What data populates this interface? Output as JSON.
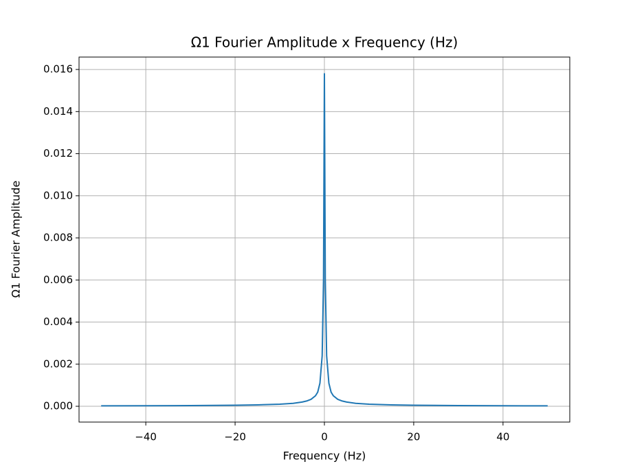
{
  "chart_data": {
    "type": "line",
    "title": "Ω1 Fourier Amplitude x Frequency (Hz)",
    "x_label": "Frequency (Hz)",
    "y_label": "Ω1 Fourier Amplitude",
    "x": [
      -50,
      -40,
      -30,
      -20,
      -15,
      -10,
      -7,
      -5,
      -4,
      -3,
      -2,
      -1.5,
      -1,
      -0.5,
      -0.2,
      0,
      0.2,
      0.5,
      1,
      1.5,
      2,
      3,
      4,
      5,
      7,
      10,
      15,
      20,
      30,
      40,
      50
    ],
    "series": [
      {
        "name": "Ω1",
        "color": "#1f77b4",
        "values": [
          2e-05,
          2.5e-05,
          3.3e-05,
          5e-05,
          6.7e-05,
          0.0001,
          0.00014,
          0.0002,
          0.00025,
          0.00033,
          0.0005,
          0.00067,
          0.0011,
          0.0024,
          0.006,
          0.0158,
          0.006,
          0.0024,
          0.0011,
          0.00067,
          0.0005,
          0.00033,
          0.00025,
          0.0002,
          0.00014,
          0.0001,
          6.7e-05,
          5e-05,
          3.3e-05,
          2.5e-05,
          2e-05
        ]
      }
    ],
    "xlim": [
      -54.95,
      54.95
    ],
    "ylim": [
      -0.00075,
      0.01659
    ],
    "xticks": [
      {
        "value": -40,
        "label": "−40"
      },
      {
        "value": -20,
        "label": "−20"
      },
      {
        "value": 0,
        "label": "0"
      },
      {
        "value": 20,
        "label": "20"
      },
      {
        "value": 40,
        "label": "40"
      }
    ],
    "yticks": [
      {
        "value": 0,
        "label": "0.000"
      },
      {
        "value": 0.002,
        "label": "0.002"
      },
      {
        "value": 0.004,
        "label": "0.004"
      },
      {
        "value": 0.006,
        "label": "0.006"
      },
      {
        "value": 0.008,
        "label": "0.008"
      },
      {
        "value": 0.01,
        "label": "0.010"
      },
      {
        "value": 0.012,
        "label": "0.012"
      },
      {
        "value": 0.014,
        "label": "0.014"
      },
      {
        "value": 0.016,
        "label": "0.016"
      }
    ],
    "grid": true
  }
}
